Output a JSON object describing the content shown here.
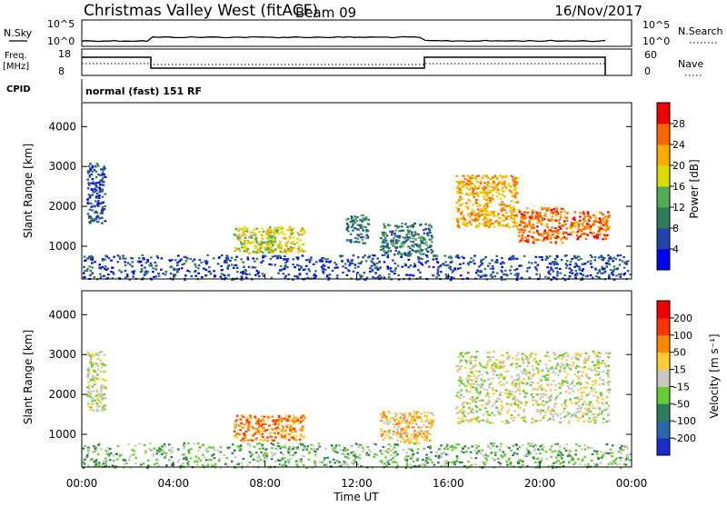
{
  "header": {
    "title": "Christmas Valley West (fitACF)",
    "beam": "Beam 09",
    "date": "16/Nov/2017"
  },
  "strip_labels": {
    "nsky": "N.Sky",
    "nsearch": "N.Search",
    "freq_line1": "Freq.",
    "freq_line2": "[MHz]",
    "nave": "Nave",
    "cpid": "CPID",
    "cpid_value": "normal (fast) 151 RF",
    "noise_ticks_left": [
      "10^5",
      "10^0"
    ],
    "noise_ticks_right": [
      "10^5",
      "10^0"
    ],
    "freq_ticks": [
      "18",
      "8"
    ],
    "nave_ticks": [
      "60",
      "0"
    ]
  },
  "colorbars": {
    "power": {
      "label": "Power [dB]",
      "ticks": [
        "4",
        "8",
        "12",
        "16",
        "20",
        "24",
        "28"
      ],
      "colors": [
        "#0000ee",
        "#2244aa",
        "#2d7d5a",
        "#55aa55",
        "#dddd00",
        "#ffaa00",
        "#ff6600",
        "#ee0000"
      ]
    },
    "velocity": {
      "label": "Velocity [m s⁻¹]",
      "ticks": [
        "200",
        "100",
        "50",
        "15",
        "-15",
        "-50",
        "-100",
        "-200"
      ],
      "colors": [
        "#1a2bcc",
        "#2a66aa",
        "#2d7d5a",
        "#66cc33",
        "#c8c8c0",
        "#ffcc33",
        "#ff8800",
        "#ff3300",
        "#ee0000"
      ]
    }
  },
  "chart_data": [
    {
      "type": "heatmap",
      "panel": "power",
      "ylabel": "Slant Range [km]",
      "yticks": [
        1000,
        2000,
        3000,
        4000
      ],
      "ylim": [
        180,
        4600
      ],
      "xlim": [
        0,
        24
      ],
      "grid": false,
      "scatter_regions": [
        {
          "t0": 0.2,
          "t1": 1.0,
          "r0": 1600,
          "r1": 3100,
          "shade": 1
        },
        {
          "t0": 0.0,
          "t1": 24.0,
          "r0": 180,
          "r1": 800,
          "shade": 1
        },
        {
          "t0": 6.6,
          "t1": 8.4,
          "r0": 850,
          "r1": 1500,
          "shade": 4
        },
        {
          "t0": 8.0,
          "t1": 9.7,
          "r0": 850,
          "r1": 1500,
          "shade": 4
        },
        {
          "t0": 11.5,
          "t1": 12.5,
          "r0": 1100,
          "r1": 1800,
          "shade": 2
        },
        {
          "t0": 13.0,
          "t1": 15.3,
          "r0": 800,
          "r1": 1600,
          "shade": 2
        },
        {
          "t0": 16.3,
          "t1": 19.0,
          "r0": 1500,
          "r1": 2800,
          "shade": 5
        },
        {
          "t0": 19.0,
          "t1": 21.0,
          "r0": 1100,
          "r1": 2000,
          "shade": 6
        },
        {
          "t0": 21.0,
          "t1": 23.0,
          "r0": 1200,
          "r1": 1900,
          "shade": 6
        }
      ]
    },
    {
      "type": "heatmap",
      "panel": "velocity",
      "ylabel": "Slant Range [km]",
      "xlabel": "Time UT",
      "yticks": [
        1000,
        2000,
        3000,
        4000
      ],
      "xticks": [
        "00:00",
        "04:00",
        "08:00",
        "12:00",
        "16:00",
        "20:00",
        "00:00"
      ],
      "ylim": [
        180,
        4600
      ],
      "xlim": [
        0,
        24
      ],
      "grid": false,
      "scatter_regions": [
        {
          "t0": 0.2,
          "t1": 1.0,
          "r0": 1600,
          "r1": 3100,
          "shade": 4
        },
        {
          "t0": 0.0,
          "t1": 24.0,
          "r0": 180,
          "r1": 800,
          "shade": 3
        },
        {
          "t0": 6.6,
          "t1": 9.7,
          "r0": 850,
          "r1": 1500,
          "shade": 6
        },
        {
          "t0": 13.0,
          "t1": 15.3,
          "r0": 800,
          "r1": 1600,
          "shade": 5
        },
        {
          "t0": 16.3,
          "t1": 23.0,
          "r0": 1300,
          "r1": 3100,
          "shade": 4
        }
      ]
    }
  ]
}
